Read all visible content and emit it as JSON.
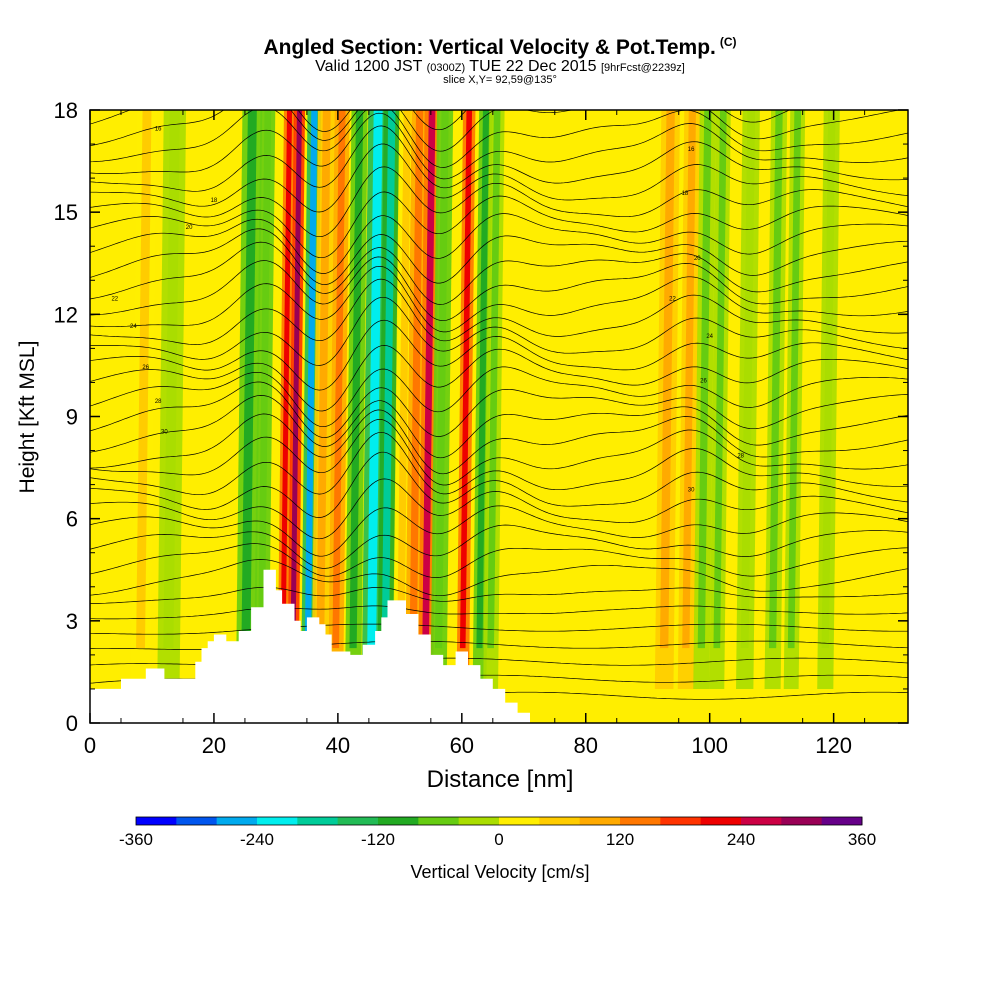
{
  "title": {
    "main": "Angled Section: Vertical Velocity & Pot.Temp.",
    "main_suffix": "(C)",
    "valid_prefix": "Valid 1200 JST",
    "valid_zulu": "(0300Z)",
    "valid_date": "TUE 22 Dec 2015",
    "valid_fcst": "[9hrFcst@2239z]",
    "slice": "slice X,Y= 92,59@135°"
  },
  "chart_data": {
    "type": "heatmap",
    "xlabel": "Distance [nm]",
    "ylabel": "Height [Kft MSL]",
    "xlim": [
      0,
      132
    ],
    "ylim": [
      0,
      18
    ],
    "x_ticks": [
      0,
      20,
      40,
      60,
      80,
      100,
      120
    ],
    "y_ticks": [
      0,
      3,
      6,
      9,
      12,
      15,
      18
    ],
    "colorbar": {
      "label": "Vertical Velocity [cm/s]",
      "ticks": [
        -360,
        -240,
        -120,
        0,
        120,
        240,
        360
      ],
      "range": [
        -360,
        360
      ],
      "step": 40,
      "colors": [
        "#0000ff",
        "#0055ee",
        "#00aaee",
        "#00eeee",
        "#00cc99",
        "#22bb55",
        "#22aa22",
        "#66cc11",
        "#aadd00",
        "#ffee00",
        "#ffcc00",
        "#ffaa00",
        "#ff7700",
        "#ff3300",
        "#ee0000",
        "#cc0044",
        "#990055",
        "#660088"
      ]
    },
    "bands": [
      {
        "x": 25.5,
        "w": 1.6,
        "v": -110
      },
      {
        "x": 28.0,
        "w": 1.2,
        "v": -80
      },
      {
        "x": 31.5,
        "w": 0.9,
        "v": 230
      },
      {
        "x": 33.1,
        "w": 0.9,
        "v": 300
      },
      {
        "x": 35.5,
        "w": 1.1,
        "v": -250
      },
      {
        "x": 37.5,
        "w": 1.4,
        "v": 80
      },
      {
        "x": 40.0,
        "w": 1.2,
        "v": 150
      },
      {
        "x": 42.8,
        "w": 1.3,
        "v": -110
      },
      {
        "x": 45.8,
        "w": 1.6,
        "v": -240
      },
      {
        "x": 48.0,
        "w": 1.3,
        "v": -170
      },
      {
        "x": 50.5,
        "w": 1.3,
        "v": 60
      },
      {
        "x": 52.5,
        "w": 1.3,
        "v": 150
      },
      {
        "x": 54.5,
        "w": 1.2,
        "v": 260
      },
      {
        "x": 56.6,
        "w": 1.3,
        "v": -80
      },
      {
        "x": 60.5,
        "w": 1.0,
        "v": 230
      },
      {
        "x": 63.2,
        "w": 1.1,
        "v": -120
      },
      {
        "x": 65.0,
        "w": 1.2,
        "v": -60
      },
      {
        "x": 93.0,
        "w": 1.5,
        "v": 80
      },
      {
        "x": 96.5,
        "w": 1.3,
        "v": 90
      },
      {
        "x": 99.0,
        "w": 1.3,
        "v": -70
      },
      {
        "x": 101.5,
        "w": 1.2,
        "v": -60
      },
      {
        "x": 106.0,
        "w": 1.4,
        "v": -40
      },
      {
        "x": 110.5,
        "w": 1.3,
        "v": -60
      },
      {
        "x": 113.5,
        "w": 1.2,
        "v": -50
      },
      {
        "x": 119.0,
        "w": 1.3,
        "v": -40
      },
      {
        "x": 8.5,
        "w": 1.6,
        "v": 70
      },
      {
        "x": 13.0,
        "w": 1.8,
        "v": -40
      }
    ],
    "contour_labels": [
      "16",
      "18",
      "20",
      "22",
      "24",
      "26",
      "28",
      "30"
    ],
    "terrain": [
      [
        0,
        1.0
      ],
      [
        5,
        1.0
      ],
      [
        5,
        1.3
      ],
      [
        9,
        1.3
      ],
      [
        9,
        1.6
      ],
      [
        12,
        1.6
      ],
      [
        12,
        1.3
      ],
      [
        17,
        1.3
      ],
      [
        17,
        1.8
      ],
      [
        18,
        1.8
      ],
      [
        18,
        2.2
      ],
      [
        19,
        2.2
      ],
      [
        19,
        2.4
      ],
      [
        20,
        2.4
      ],
      [
        20,
        2.6
      ],
      [
        22,
        2.6
      ],
      [
        22,
        2.4
      ],
      [
        24,
        2.4
      ],
      [
        24,
        2.7
      ],
      [
        26,
        2.7
      ],
      [
        26,
        3.4
      ],
      [
        28,
        3.4
      ],
      [
        28,
        4.5
      ],
      [
        30,
        4.5
      ],
      [
        30,
        3.9
      ],
      [
        31,
        3.9
      ],
      [
        31,
        3.5
      ],
      [
        33,
        3.5
      ],
      [
        33,
        3.0
      ],
      [
        34,
        3.0
      ],
      [
        34,
        2.7
      ],
      [
        35,
        2.7
      ],
      [
        35,
        3.1
      ],
      [
        37,
        3.1
      ],
      [
        37,
        2.9
      ],
      [
        38,
        2.9
      ],
      [
        38,
        2.6
      ],
      [
        39,
        2.6
      ],
      [
        39,
        2.1
      ],
      [
        42,
        2.1
      ],
      [
        42,
        2.0
      ],
      [
        44,
        2.0
      ],
      [
        44,
        2.3
      ],
      [
        46,
        2.3
      ],
      [
        46,
        2.7
      ],
      [
        47,
        2.7
      ],
      [
        47,
        3.1
      ],
      [
        48,
        3.1
      ],
      [
        48,
        3.6
      ],
      [
        51,
        3.6
      ],
      [
        51,
        3.2
      ],
      [
        53,
        3.2
      ],
      [
        53,
        2.6
      ],
      [
        55,
        2.6
      ],
      [
        55,
        2.0
      ],
      [
        57,
        2.0
      ],
      [
        57,
        1.7
      ],
      [
        59,
        1.7
      ],
      [
        59,
        2.1
      ],
      [
        61,
        2.1
      ],
      [
        61,
        1.7
      ],
      [
        63,
        1.7
      ],
      [
        63,
        1.3
      ],
      [
        65,
        1.3
      ],
      [
        65,
        1.0
      ],
      [
        67,
        1.0
      ],
      [
        67,
        0.6
      ],
      [
        69,
        0.6
      ],
      [
        69,
        0.3
      ],
      [
        71,
        0.3
      ],
      [
        71,
        0.0
      ]
    ]
  }
}
